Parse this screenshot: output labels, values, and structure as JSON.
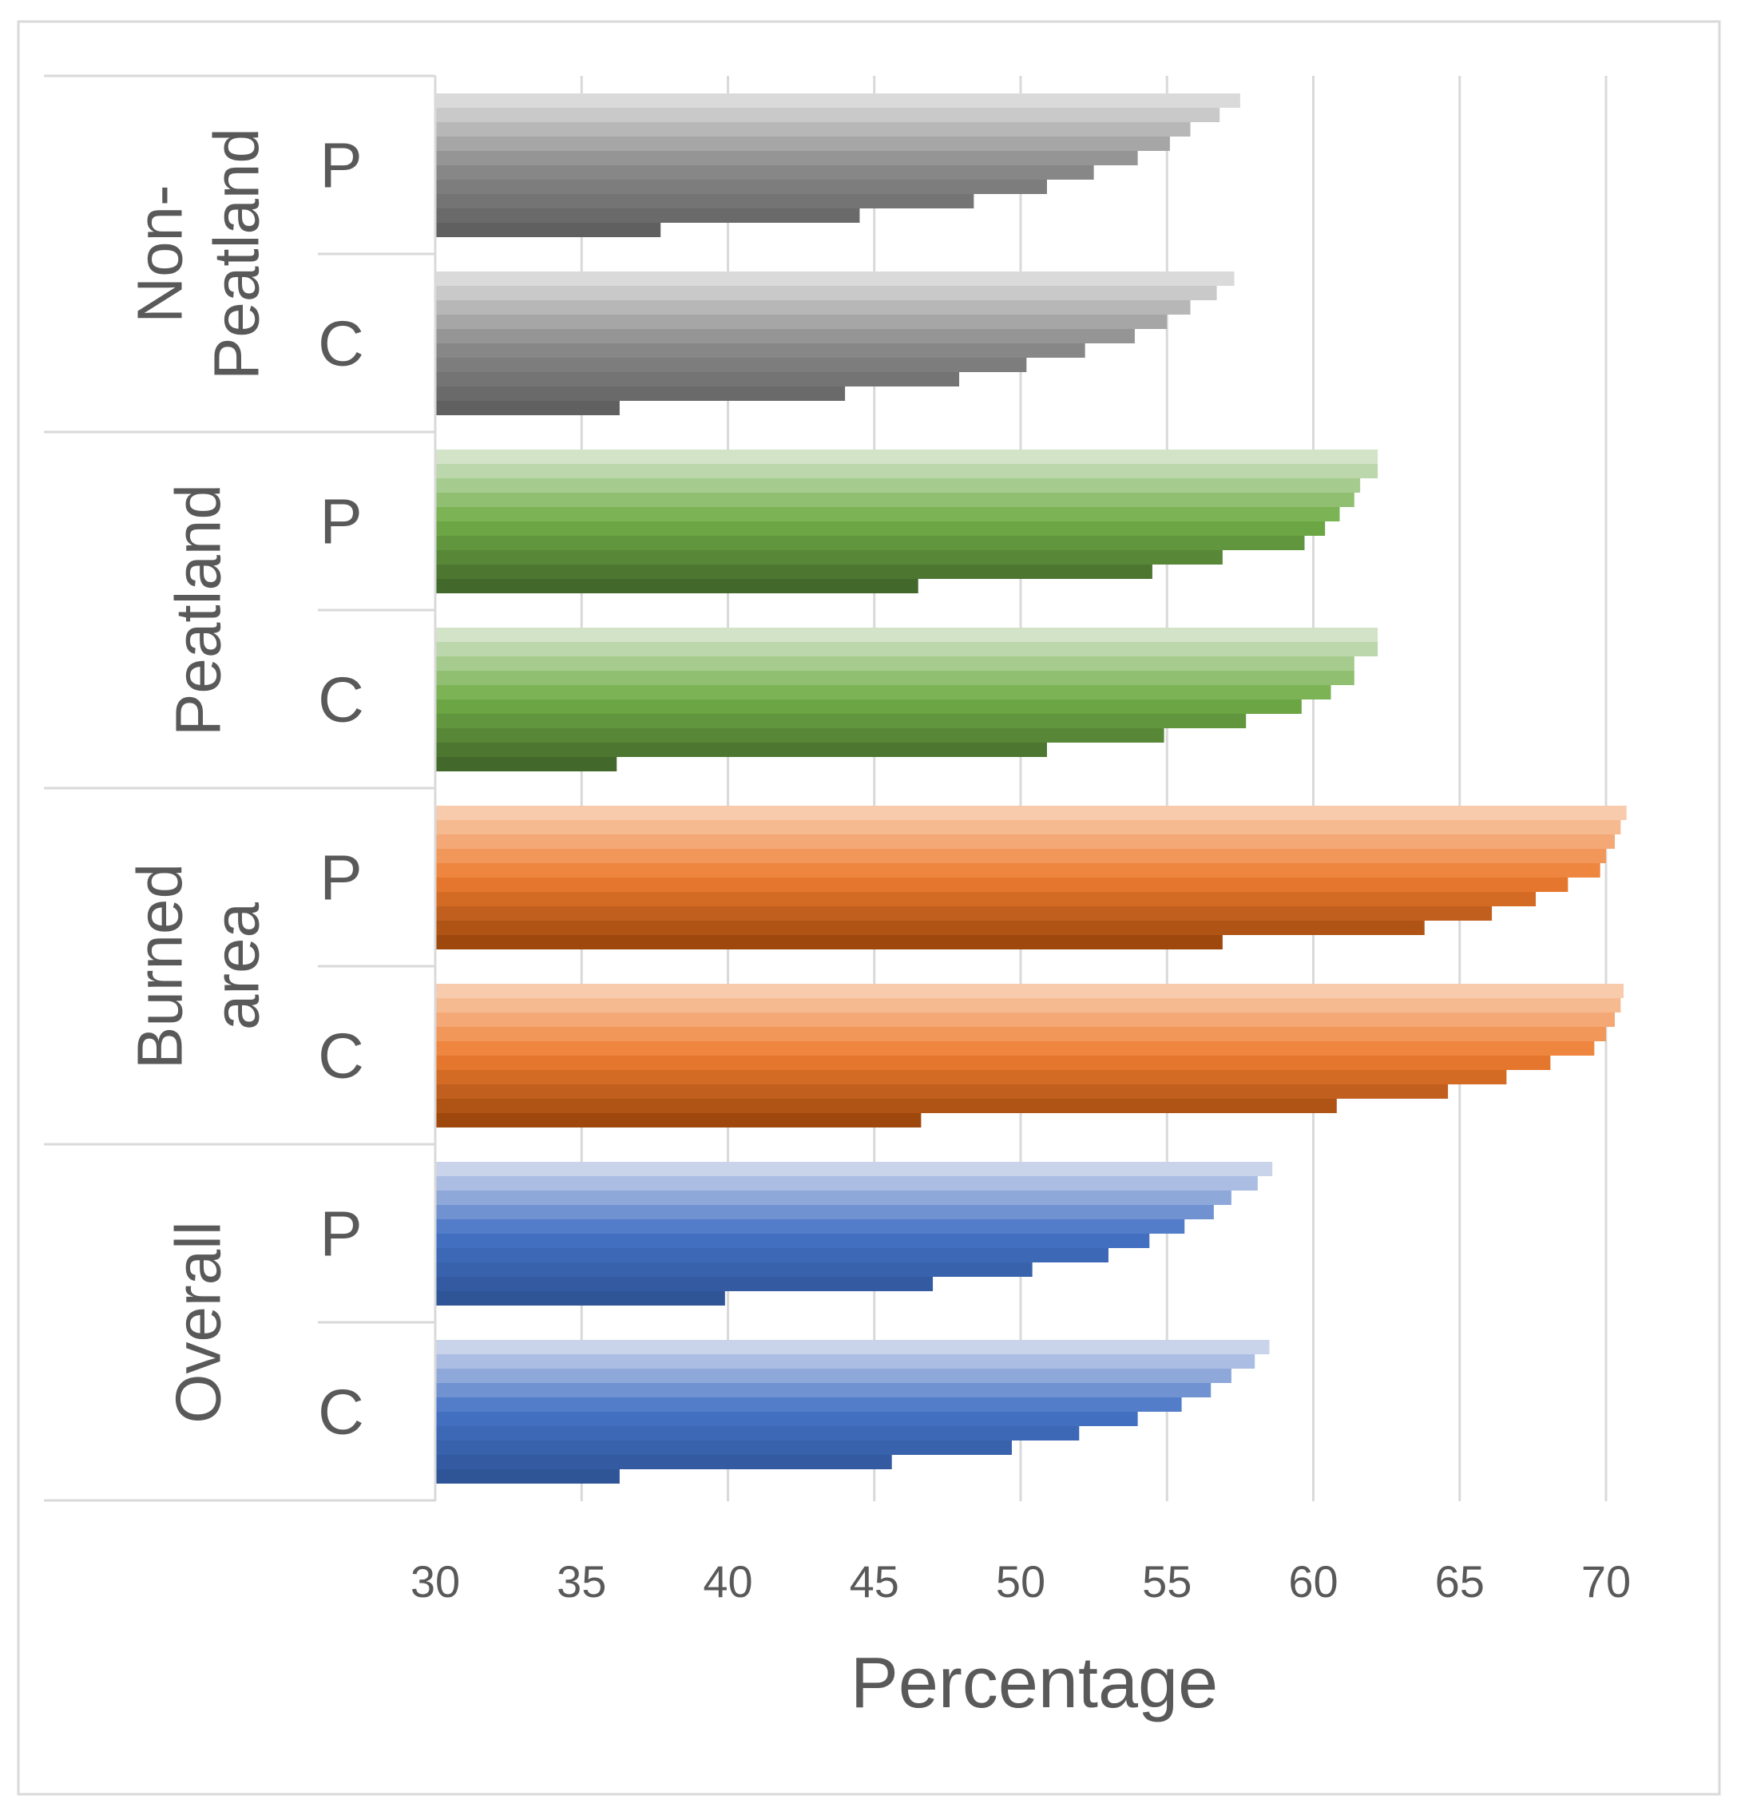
{
  "chart_data": {
    "type": "bar",
    "orientation": "horizontal",
    "title": "",
    "xlabel": "Percentage",
    "ylabel": "",
    "xlim": [
      30,
      72
    ],
    "xticks": [
      30,
      35,
      40,
      45,
      50,
      55,
      60,
      65,
      70
    ],
    "grid": true,
    "legend": "none",
    "groups": [
      {
        "name": "Non-Peatland",
        "label_lines": [
          "Non-",
          "Peatland"
        ],
        "color_dark": "#606060",
        "color_mid": "#8c8c8c",
        "color_light": "#dadada",
        "subgroups": [
          {
            "label": "P",
            "values": [
              57.5,
              56.8,
              55.8,
              55.1,
              54.0,
              52.5,
              50.9,
              48.4,
              44.5,
              37.7
            ]
          },
          {
            "label": "C",
            "values": [
              57.3,
              56.7,
              55.8,
              55.0,
              53.9,
              52.2,
              50.2,
              47.9,
              44.0,
              36.3
            ]
          }
        ]
      },
      {
        "name": "Peatland",
        "label_lines": [
          "Peatland"
        ],
        "color_dark": "#43682b",
        "color_mid": "#70ad47",
        "color_light": "#d2e3c7",
        "subgroups": [
          {
            "label": "P",
            "values": [
              62.2,
              62.2,
              61.6,
              61.4,
              60.9,
              60.4,
              59.7,
              56.9,
              54.5,
              46.5
            ]
          },
          {
            "label": "C",
            "values": [
              62.2,
              62.2,
              61.4,
              61.4,
              60.6,
              59.6,
              57.7,
              54.9,
              50.9,
              36.2
            ]
          }
        ]
      },
      {
        "name": "Burned area",
        "label_lines": [
          "Burned",
          "area"
        ],
        "color_dark": "#9e480e",
        "color_mid": "#ed7d31",
        "color_light": "#f9cbad",
        "subgroups": [
          {
            "label": "P",
            "values": [
              70.7,
              70.5,
              70.3,
              70.0,
              69.8,
              68.7,
              67.6,
              66.1,
              63.8,
              56.9
            ]
          },
          {
            "label": "C",
            "values": [
              70.6,
              70.5,
              70.3,
              70.0,
              69.6,
              68.1,
              66.6,
              64.6,
              60.8,
              46.6
            ]
          }
        ]
      },
      {
        "name": "Overall",
        "label_lines": [
          "Overall"
        ],
        "color_dark": "#2f5597",
        "color_mid": "#4472c4",
        "color_light": "#c9d3ea",
        "subgroups": [
          {
            "label": "P",
            "values": [
              58.6,
              58.1,
              57.2,
              56.6,
              55.6,
              54.4,
              53.0,
              50.4,
              47.0,
              39.9
            ]
          },
          {
            "label": "C",
            "values": [
              58.5,
              58.0,
              57.2,
              56.5,
              55.5,
              54.0,
              52.0,
              49.7,
              45.6,
              36.3
            ]
          }
        ]
      }
    ]
  }
}
